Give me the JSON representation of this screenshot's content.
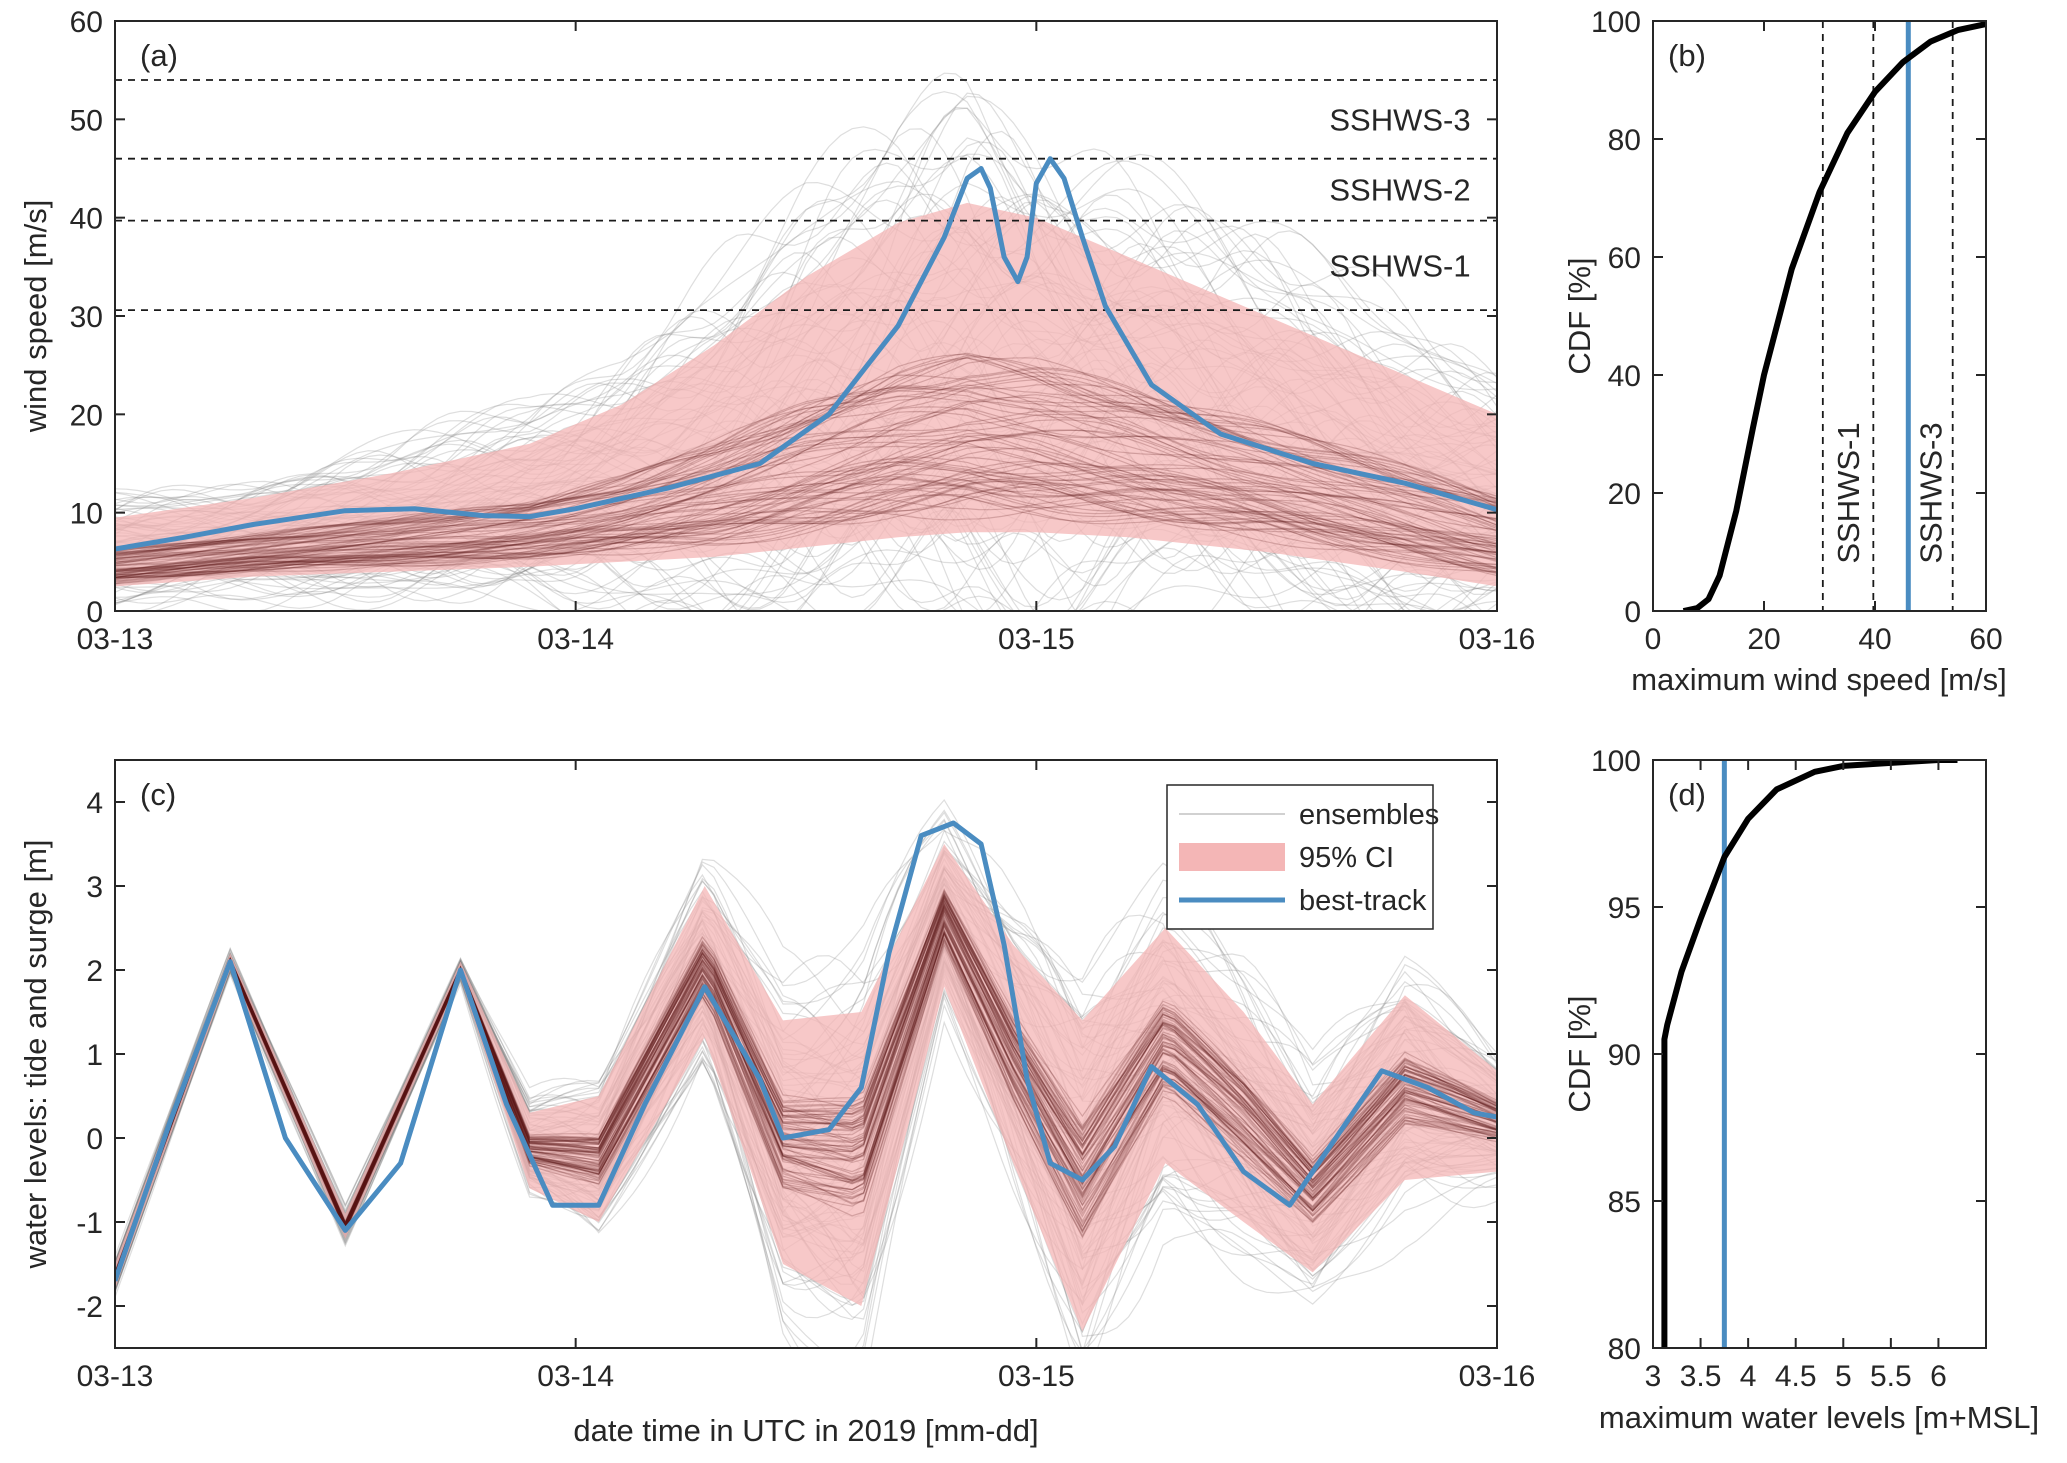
{
  "colors": {
    "best_track": "#4a8cc1",
    "ci_band": "#f4b6b6",
    "ensemble": "#7a7a7a",
    "ensemble_core": "#5b1616",
    "cdf": "#000000",
    "axis": "#262626"
  },
  "chart_data": [
    {
      "panel": "a",
      "type": "line",
      "panel_tag": "(a)",
      "ylabel": "wind speed [m/s]",
      "xlabel": "",
      "x_ticks": [
        "03-13",
        "03-14",
        "03-15",
        "03-16"
      ],
      "x_range_days": [
        0,
        3
      ],
      "ylim": [
        0,
        60
      ],
      "y_ticks": [
        0,
        10,
        20,
        30,
        40,
        50,
        60
      ],
      "thresholds": [
        {
          "value": 30.6,
          "label": "SSHWS-1"
        },
        {
          "value": 39.7,
          "label": "SSHWS-2"
        },
        {
          "value": 46.0,
          "label": "SSHWS-3"
        },
        {
          "value": 54.0,
          "label": ""
        }
      ],
      "series": [
        {
          "name": "best-track",
          "x_days": [
            0,
            0.15,
            0.3,
            0.5,
            0.65,
            0.8,
            0.9,
            1.0,
            1.2,
            1.4,
            1.55,
            1.7,
            1.8,
            1.85,
            1.88,
            1.9,
            1.93,
            1.96,
            1.98,
            2.0,
            2.03,
            2.06,
            2.1,
            2.15,
            2.25,
            2.4,
            2.6,
            2.8,
            3.0
          ],
          "values": [
            6.3,
            7.5,
            8.8,
            10.2,
            10.4,
            9.7,
            9.6,
            10.4,
            12.5,
            15.0,
            20.0,
            29.0,
            38.0,
            44.0,
            45.0,
            43.0,
            36.0,
            33.5,
            36.0,
            43.5,
            46.0,
            44.0,
            38.0,
            31.0,
            23.0,
            18.0,
            15.0,
            13.0,
            10.3
          ]
        },
        {
          "name": "95% CI",
          "x_days": [
            0,
            0.3,
            0.6,
            0.9,
            1.1,
            1.3,
            1.5,
            1.7,
            1.85,
            2.0,
            2.2,
            2.5,
            2.8,
            3.0
          ],
          "upper": [
            9.5,
            11.5,
            14.0,
            17.0,
            21.0,
            27.0,
            34.0,
            39.5,
            41.5,
            40.0,
            36.0,
            30.0,
            24.0,
            20.0
          ],
          "lower": [
            2.5,
            3.5,
            4.0,
            4.5,
            5.0,
            5.5,
            6.5,
            7.5,
            8.0,
            8.0,
            7.5,
            6.0,
            4.0,
            2.5
          ]
        }
      ]
    },
    {
      "panel": "b",
      "type": "line",
      "panel_tag": "(b)",
      "xlabel": "maximum wind speed [m/s]",
      "ylabel": "CDF [%]",
      "xlim": [
        0,
        60
      ],
      "ylim": [
        0,
        100
      ],
      "x_ticks": [
        0,
        20,
        40,
        60
      ],
      "y_ticks": [
        0,
        20,
        40,
        60,
        80,
        100
      ],
      "thresholds": [
        {
          "value": 30.6,
          "label": ""
        },
        {
          "value": 39.7,
          "label": "SSHWS-1"
        },
        {
          "value": 54.0,
          "label": "SSHWS-3"
        }
      ],
      "best_track_max": 46.0,
      "series": [
        {
          "name": "CDF",
          "x": [
            5.5,
            8,
            10,
            12,
            15,
            18,
            20,
            25,
            30,
            35,
            40,
            45,
            50,
            55,
            60
          ],
          "values": [
            0,
            0.5,
            2,
            6,
            17,
            31,
            40,
            58,
            71,
            81,
            88,
            93,
            96.5,
            98.5,
            99.5
          ]
        }
      ]
    },
    {
      "panel": "c",
      "type": "line",
      "panel_tag": "(c)",
      "xlabel": "date time in UTC in 2019 [mm-dd]",
      "ylabel": "water levels: tide and surge [m]",
      "x_ticks": [
        "03-13",
        "03-14",
        "03-15",
        "03-16"
      ],
      "x_range_days": [
        0,
        3
      ],
      "ylim": [
        -2.5,
        4.5
      ],
      "y_ticks": [
        -2,
        -1,
        0,
        1,
        2,
        3,
        4
      ],
      "legend": [
        {
          "label": "ensembles",
          "kind": "line-thin"
        },
        {
          "label": "95% CI",
          "kind": "patch"
        },
        {
          "label": "best-track",
          "kind": "line-thick"
        }
      ],
      "series": [
        {
          "name": "best-track",
          "x_days": [
            0,
            0.12,
            0.25,
            0.37,
            0.5,
            0.62,
            0.75,
            0.85,
            0.95,
            1.05,
            1.15,
            1.28,
            1.4,
            1.45,
            1.55,
            1.62,
            1.68,
            1.75,
            1.82,
            1.88,
            1.93,
            1.98,
            2.03,
            2.1,
            2.17,
            2.25,
            2.35,
            2.45,
            2.55,
            2.65,
            2.75,
            2.85,
            2.95,
            3.0
          ],
          "values": [
            -1.7,
            0.2,
            2.1,
            0.0,
            -1.1,
            -0.3,
            2.0,
            0.4,
            -0.8,
            -0.8,
            0.4,
            1.8,
            0.7,
            0.0,
            0.1,
            0.6,
            2.2,
            3.6,
            3.75,
            3.5,
            2.3,
            0.7,
            -0.3,
            -0.5,
            -0.1,
            0.85,
            0.4,
            -0.4,
            -0.8,
            0.0,
            0.8,
            0.6,
            0.3,
            0.25
          ]
        },
        {
          "name": "95% CI",
          "x_days": [
            0,
            0.25,
            0.5,
            0.75,
            0.9,
            1.05,
            1.28,
            1.45,
            1.62,
            1.8,
            1.95,
            2.1,
            2.28,
            2.45,
            2.6,
            2.8,
            3.0
          ],
          "upper": [
            -1.5,
            2.2,
            -0.9,
            2.1,
            0.3,
            0.5,
            3.0,
            1.4,
            1.5,
            3.5,
            2.3,
            1.4,
            2.5,
            1.5,
            0.4,
            1.7,
            0.8
          ],
          "lower": [
            -1.8,
            2.0,
            -1.2,
            1.9,
            -0.6,
            -1.0,
            1.2,
            -1.5,
            -2.0,
            1.8,
            -0.3,
            -2.3,
            -0.3,
            -1.0,
            -1.6,
            -0.5,
            -0.4
          ]
        }
      ]
    },
    {
      "panel": "d",
      "type": "line",
      "panel_tag": "(d)",
      "xlabel": "maximum water levels [m+MSL]",
      "ylabel": "CDF [%]",
      "xlim": [
        3,
        6.5
      ],
      "ylim": [
        80,
        100
      ],
      "x_ticks": [
        3,
        3.5,
        4,
        4.5,
        5,
        5.5,
        6
      ],
      "y_ticks": [
        80,
        85,
        90,
        95,
        100
      ],
      "best_track_max": 3.75,
      "series": [
        {
          "name": "CDF",
          "x": [
            3.12,
            3.12,
            3.15,
            3.3,
            3.5,
            3.75,
            4.0,
            4.3,
            4.7,
            5.0,
            5.5,
            6.0,
            6.2
          ],
          "values": [
            80,
            90.5,
            91.0,
            92.8,
            94.6,
            96.7,
            98.0,
            99.0,
            99.6,
            99.8,
            99.9,
            100,
            100
          ]
        }
      ]
    }
  ]
}
